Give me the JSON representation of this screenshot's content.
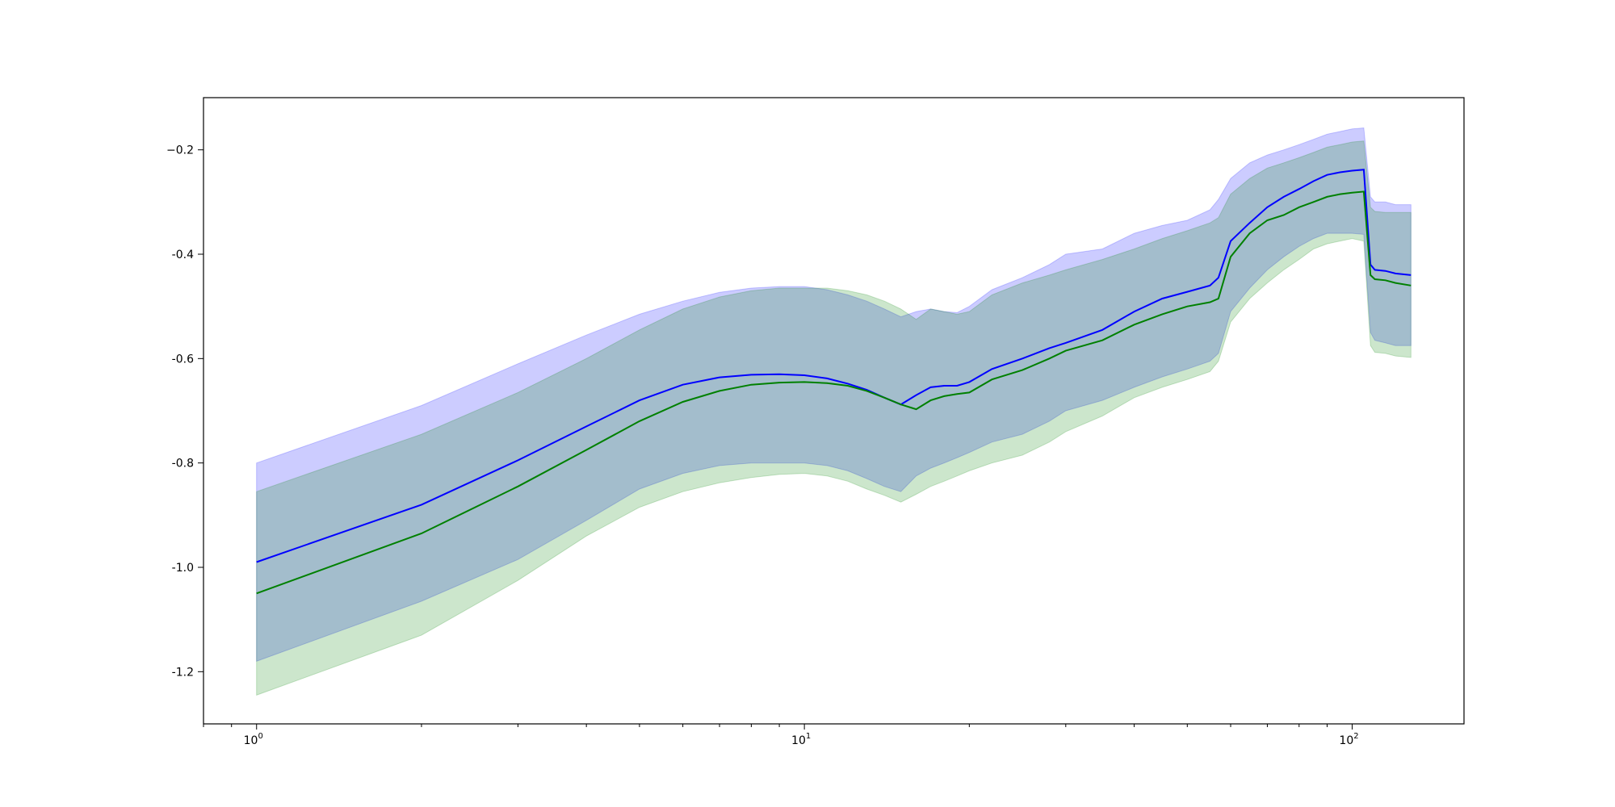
{
  "chart_data": {
    "type": "line",
    "title": "",
    "xlabel": "",
    "ylabel": "",
    "xscale": "log",
    "xlim": [
      0.8,
      160
    ],
    "ylim": [
      -1.3,
      -0.1
    ],
    "grid": false,
    "x_ticks": [
      {
        "value": 1,
        "base": "10",
        "exp": "0"
      },
      {
        "value": 10,
        "base": "10",
        "exp": "1"
      },
      {
        "value": 100,
        "base": "10",
        "exp": "2"
      }
    ],
    "y_ticks": [
      {
        "value": -0.2,
        "label": "−0.2"
      },
      {
        "value": -0.4,
        "label": "-0.4"
      },
      {
        "value": -0.6,
        "label": "-0.6"
      },
      {
        "value": -0.8,
        "label": "-0.8"
      },
      {
        "value": -1.0,
        "label": "-1.0"
      },
      {
        "value": -1.2,
        "label": "-1.2"
      }
    ],
    "series": [
      {
        "color": "#0000ff",
        "band_color": "#0000ff",
        "band_opacity": 0.2,
        "x": [
          1,
          2,
          3,
          4,
          5,
          6,
          7,
          8,
          9,
          10,
          11,
          12,
          13,
          14,
          15,
          16,
          17,
          18,
          19,
          20,
          22,
          25,
          28,
          30,
          35,
          40,
          45,
          50,
          55,
          57,
          60,
          65,
          70,
          75,
          80,
          85,
          90,
          95,
          100,
          105,
          108,
          110,
          115,
          120,
          128
        ],
        "mean": [
          -0.99,
          -0.88,
          -0.795,
          -0.73,
          -0.68,
          -0.65,
          -0.636,
          -0.631,
          -0.63,
          -0.632,
          -0.638,
          -0.648,
          -0.66,
          -0.675,
          -0.688,
          -0.67,
          -0.655,
          -0.652,
          -0.652,
          -0.645,
          -0.62,
          -0.6,
          -0.58,
          -0.57,
          -0.545,
          -0.51,
          -0.485,
          -0.472,
          -0.46,
          -0.445,
          -0.375,
          -0.34,
          -0.31,
          -0.29,
          -0.275,
          -0.26,
          -0.248,
          -0.243,
          -0.24,
          -0.238,
          -0.42,
          -0.43,
          -0.432,
          -0.437,
          -0.44
        ],
        "upper": [
          -0.8,
          -0.69,
          -0.61,
          -0.555,
          -0.515,
          -0.49,
          -0.473,
          -0.465,
          -0.462,
          -0.462,
          -0.468,
          -0.478,
          -0.49,
          -0.505,
          -0.52,
          -0.51,
          -0.505,
          -0.51,
          -0.512,
          -0.5,
          -0.468,
          -0.445,
          -0.42,
          -0.4,
          -0.39,
          -0.36,
          -0.345,
          -0.335,
          -0.315,
          -0.295,
          -0.255,
          -0.225,
          -0.21,
          -0.2,
          -0.19,
          -0.18,
          -0.17,
          -0.165,
          -0.16,
          -0.158,
          -0.29,
          -0.3,
          -0.3,
          -0.305,
          -0.305
        ],
        "lower": [
          -1.18,
          -1.065,
          -0.985,
          -0.91,
          -0.85,
          -0.82,
          -0.805,
          -0.8,
          -0.8,
          -0.8,
          -0.805,
          -0.815,
          -0.83,
          -0.845,
          -0.855,
          -0.825,
          -0.81,
          -0.8,
          -0.79,
          -0.78,
          -0.76,
          -0.745,
          -0.72,
          -0.7,
          -0.68,
          -0.655,
          -0.635,
          -0.62,
          -0.605,
          -0.59,
          -0.51,
          -0.465,
          -0.43,
          -0.405,
          -0.385,
          -0.37,
          -0.36,
          -0.36,
          -0.36,
          -0.362,
          -0.55,
          -0.565,
          -0.57,
          -0.575,
          -0.575
        ]
      },
      {
        "color": "#008000",
        "band_color": "#008000",
        "band_opacity": 0.2,
        "x": [
          1,
          2,
          3,
          4,
          5,
          6,
          7,
          8,
          9,
          10,
          11,
          12,
          13,
          14,
          15,
          16,
          17,
          18,
          19,
          20,
          22,
          25,
          28,
          30,
          35,
          40,
          45,
          50,
          55,
          57,
          60,
          65,
          70,
          75,
          80,
          85,
          90,
          95,
          100,
          105,
          108,
          110,
          115,
          120,
          128
        ],
        "mean": [
          -1.05,
          -0.935,
          -0.845,
          -0.775,
          -0.72,
          -0.683,
          -0.662,
          -0.65,
          -0.646,
          -0.645,
          -0.647,
          -0.652,
          -0.662,
          -0.675,
          -0.688,
          -0.697,
          -0.68,
          -0.672,
          -0.668,
          -0.665,
          -0.64,
          -0.622,
          -0.6,
          -0.585,
          -0.565,
          -0.535,
          -0.515,
          -0.5,
          -0.492,
          -0.485,
          -0.405,
          -0.36,
          -0.335,
          -0.325,
          -0.31,
          -0.3,
          -0.29,
          -0.285,
          -0.282,
          -0.28,
          -0.44,
          -0.448,
          -0.45,
          -0.455,
          -0.46
        ],
        "upper": [
          -0.855,
          -0.745,
          -0.665,
          -0.6,
          -0.545,
          -0.505,
          -0.482,
          -0.47,
          -0.465,
          -0.465,
          -0.465,
          -0.47,
          -0.478,
          -0.49,
          -0.505,
          -0.525,
          -0.505,
          -0.51,
          -0.515,
          -0.51,
          -0.478,
          -0.455,
          -0.44,
          -0.43,
          -0.41,
          -0.39,
          -0.37,
          -0.355,
          -0.34,
          -0.33,
          -0.285,
          -0.255,
          -0.235,
          -0.225,
          -0.215,
          -0.205,
          -0.195,
          -0.19,
          -0.185,
          -0.183,
          -0.31,
          -0.318,
          -0.32,
          -0.32,
          -0.32
        ],
        "lower": [
          -1.245,
          -1.13,
          -1.025,
          -0.94,
          -0.885,
          -0.855,
          -0.838,
          -0.828,
          -0.822,
          -0.82,
          -0.825,
          -0.835,
          -0.85,
          -0.862,
          -0.875,
          -0.86,
          -0.845,
          -0.835,
          -0.825,
          -0.815,
          -0.8,
          -0.785,
          -0.76,
          -0.74,
          -0.71,
          -0.675,
          -0.655,
          -0.64,
          -0.625,
          -0.605,
          -0.53,
          -0.485,
          -0.455,
          -0.43,
          -0.41,
          -0.39,
          -0.38,
          -0.375,
          -0.37,
          -0.375,
          -0.575,
          -0.588,
          -0.59,
          -0.595,
          -0.598
        ]
      }
    ]
  }
}
